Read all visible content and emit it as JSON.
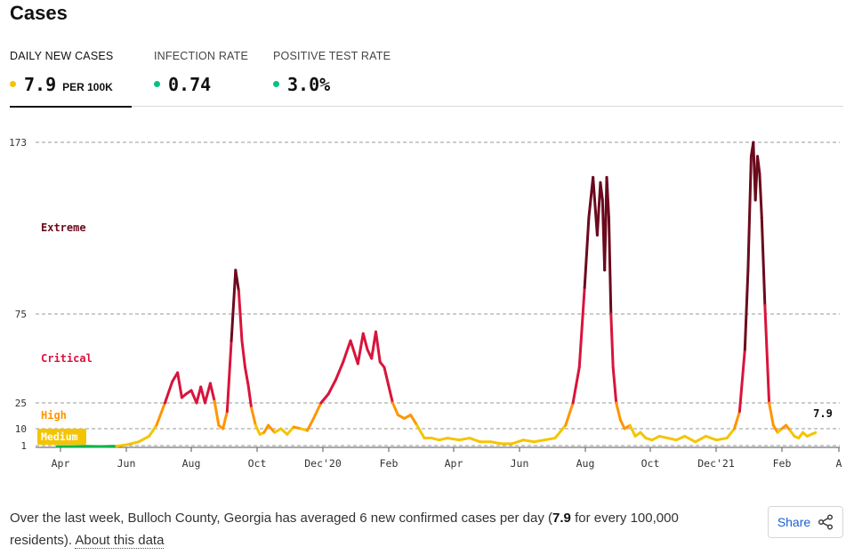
{
  "page": {
    "title": "Cases"
  },
  "tabs": [
    {
      "label": "DAILY NEW CASES",
      "value": "7.9",
      "unit": "PER 100K",
      "dot_color": "#f5c400",
      "active": true
    },
    {
      "label": "INFECTION RATE",
      "value": "0.74",
      "unit": "",
      "dot_color": "#00c47c",
      "active": false
    },
    {
      "label": "POSITIVE TEST RATE",
      "value": "3.0%",
      "unit": "",
      "dot_color": "#00c47c",
      "active": false
    }
  ],
  "chart_data": {
    "type": "line",
    "ylim": [
      0,
      173
    ],
    "yticks": [
      1,
      10,
      25,
      75,
      173
    ],
    "x_tick_labels": [
      "Apr",
      "Jun",
      "Aug",
      "Oct",
      "Dec'20",
      "Feb",
      "Apr",
      "Jun",
      "Aug",
      "Oct",
      "Dec'21",
      "Feb",
      "A"
    ],
    "risk_levels": [
      {
        "label": "Extreme",
        "min": 75,
        "color": "#6b0a1d"
      },
      {
        "label": "Critical",
        "min": 25,
        "color": "#d8143c"
      },
      {
        "label": "High",
        "min": 10,
        "color": "#ff9500"
      },
      {
        "label": "Medium",
        "min": 1,
        "color": "#f5c400"
      },
      {
        "label": "",
        "min": 0,
        "color": "#00b54a"
      }
    ],
    "last_value_label": "7.9",
    "x": [
      "2020-03-20",
      "2020-04-01",
      "2020-04-15",
      "2020-05-01",
      "2020-05-15",
      "2020-05-25",
      "2020-06-05",
      "2020-06-15",
      "2020-06-22",
      "2020-06-30",
      "2020-07-07",
      "2020-07-12",
      "2020-07-16",
      "2020-07-20",
      "2020-07-25",
      "2020-07-30",
      "2020-08-03",
      "2020-08-07",
      "2020-08-12",
      "2020-08-16",
      "2020-08-20",
      "2020-08-24",
      "2020-08-28",
      "2020-09-01",
      "2020-09-05",
      "2020-09-08",
      "2020-09-11",
      "2020-09-14",
      "2020-09-17",
      "2020-09-20",
      "2020-09-24",
      "2020-09-28",
      "2020-10-02",
      "2020-10-06",
      "2020-10-12",
      "2020-10-18",
      "2020-10-24",
      "2020-10-30",
      "2020-11-06",
      "2020-11-12",
      "2020-11-18",
      "2020-11-25",
      "2020-12-02",
      "2020-12-09",
      "2020-12-16",
      "2020-12-23",
      "2020-12-30",
      "2021-01-04",
      "2021-01-08",
      "2021-01-12",
      "2021-01-16",
      "2021-01-20",
      "2021-01-24",
      "2021-01-28",
      "2021-02-01",
      "2021-02-06",
      "2021-02-12",
      "2021-02-18",
      "2021-02-24",
      "2021-03-03",
      "2021-03-10",
      "2021-03-17",
      "2021-03-25",
      "2021-04-05",
      "2021-04-15",
      "2021-04-25",
      "2021-05-05",
      "2021-05-15",
      "2021-05-25",
      "2021-06-05",
      "2021-06-15",
      "2021-06-25",
      "2021-07-05",
      "2021-07-15",
      "2021-07-22",
      "2021-07-28",
      "2021-08-02",
      "2021-08-06",
      "2021-08-10",
      "2021-08-14",
      "2021-08-17",
      "2021-08-19",
      "2021-08-21",
      "2021-08-23",
      "2021-08-25",
      "2021-08-27",
      "2021-08-29",
      "2021-09-01",
      "2021-09-05",
      "2021-09-09",
      "2021-09-14",
      "2021-09-19",
      "2021-09-24",
      "2021-09-29",
      "2021-10-05",
      "2021-10-12",
      "2021-10-20",
      "2021-10-28",
      "2021-11-05",
      "2021-11-15",
      "2021-11-25",
      "2021-12-05",
      "2021-12-15",
      "2021-12-22",
      "2021-12-27",
      "2022-01-01",
      "2022-01-04",
      "2022-01-07",
      "2022-01-09",
      "2022-01-11",
      "2022-01-13",
      "2022-01-15",
      "2022-01-17",
      "2022-01-20",
      "2022-01-24",
      "2022-01-28",
      "2022-02-01",
      "2022-02-05",
      "2022-02-09",
      "2022-02-13",
      "2022-02-17",
      "2022-02-21",
      "2022-02-25",
      "2022-03-01",
      "2022-03-05",
      "2022-03-09"
    ],
    "values": [
      0.5,
      0.5,
      0.6,
      0.5,
      0.7,
      1.5,
      3,
      6,
      12,
      25,
      37,
      42,
      28,
      30,
      32,
      25,
      34,
      25,
      36,
      26,
      12,
      10,
      20,
      60,
      100,
      88,
      60,
      45,
      35,
      22,
      12,
      7,
      8,
      12,
      8,
      10,
      7,
      11,
      10,
      9,
      16,
      25,
      30,
      38,
      48,
      60,
      47,
      64,
      55,
      50,
      65,
      48,
      45,
      35,
      25,
      18,
      16,
      18,
      12,
      5,
      5,
      4,
      5,
      4,
      5,
      3,
      3,
      2,
      2,
      4,
      3,
      4,
      5,
      12,
      25,
      45,
      90,
      130,
      153,
      120,
      150,
      140,
      100,
      153,
      130,
      75,
      45,
      25,
      15,
      10,
      12,
      6,
      8,
      5,
      4,
      6,
      5,
      4,
      6,
      3,
      6,
      4,
      5,
      10,
      20,
      55,
      100,
      165,
      173,
      140,
      165,
      155,
      130,
      80,
      25,
      12,
      8,
      10,
      12,
      9,
      6,
      5,
      8,
      6,
      7,
      7.9
    ],
    "series_colors_by_value": true
  },
  "footer": {
    "text_before": "Over the last week, Bulloch County, Georgia has averaged 6 new confirmed cases per day (",
    "text_bold": "7.9",
    "text_after": " for every 100,000 residents). ",
    "link_label": "About this data"
  },
  "share": {
    "label": "Share",
    "icon": "share-icon"
  }
}
